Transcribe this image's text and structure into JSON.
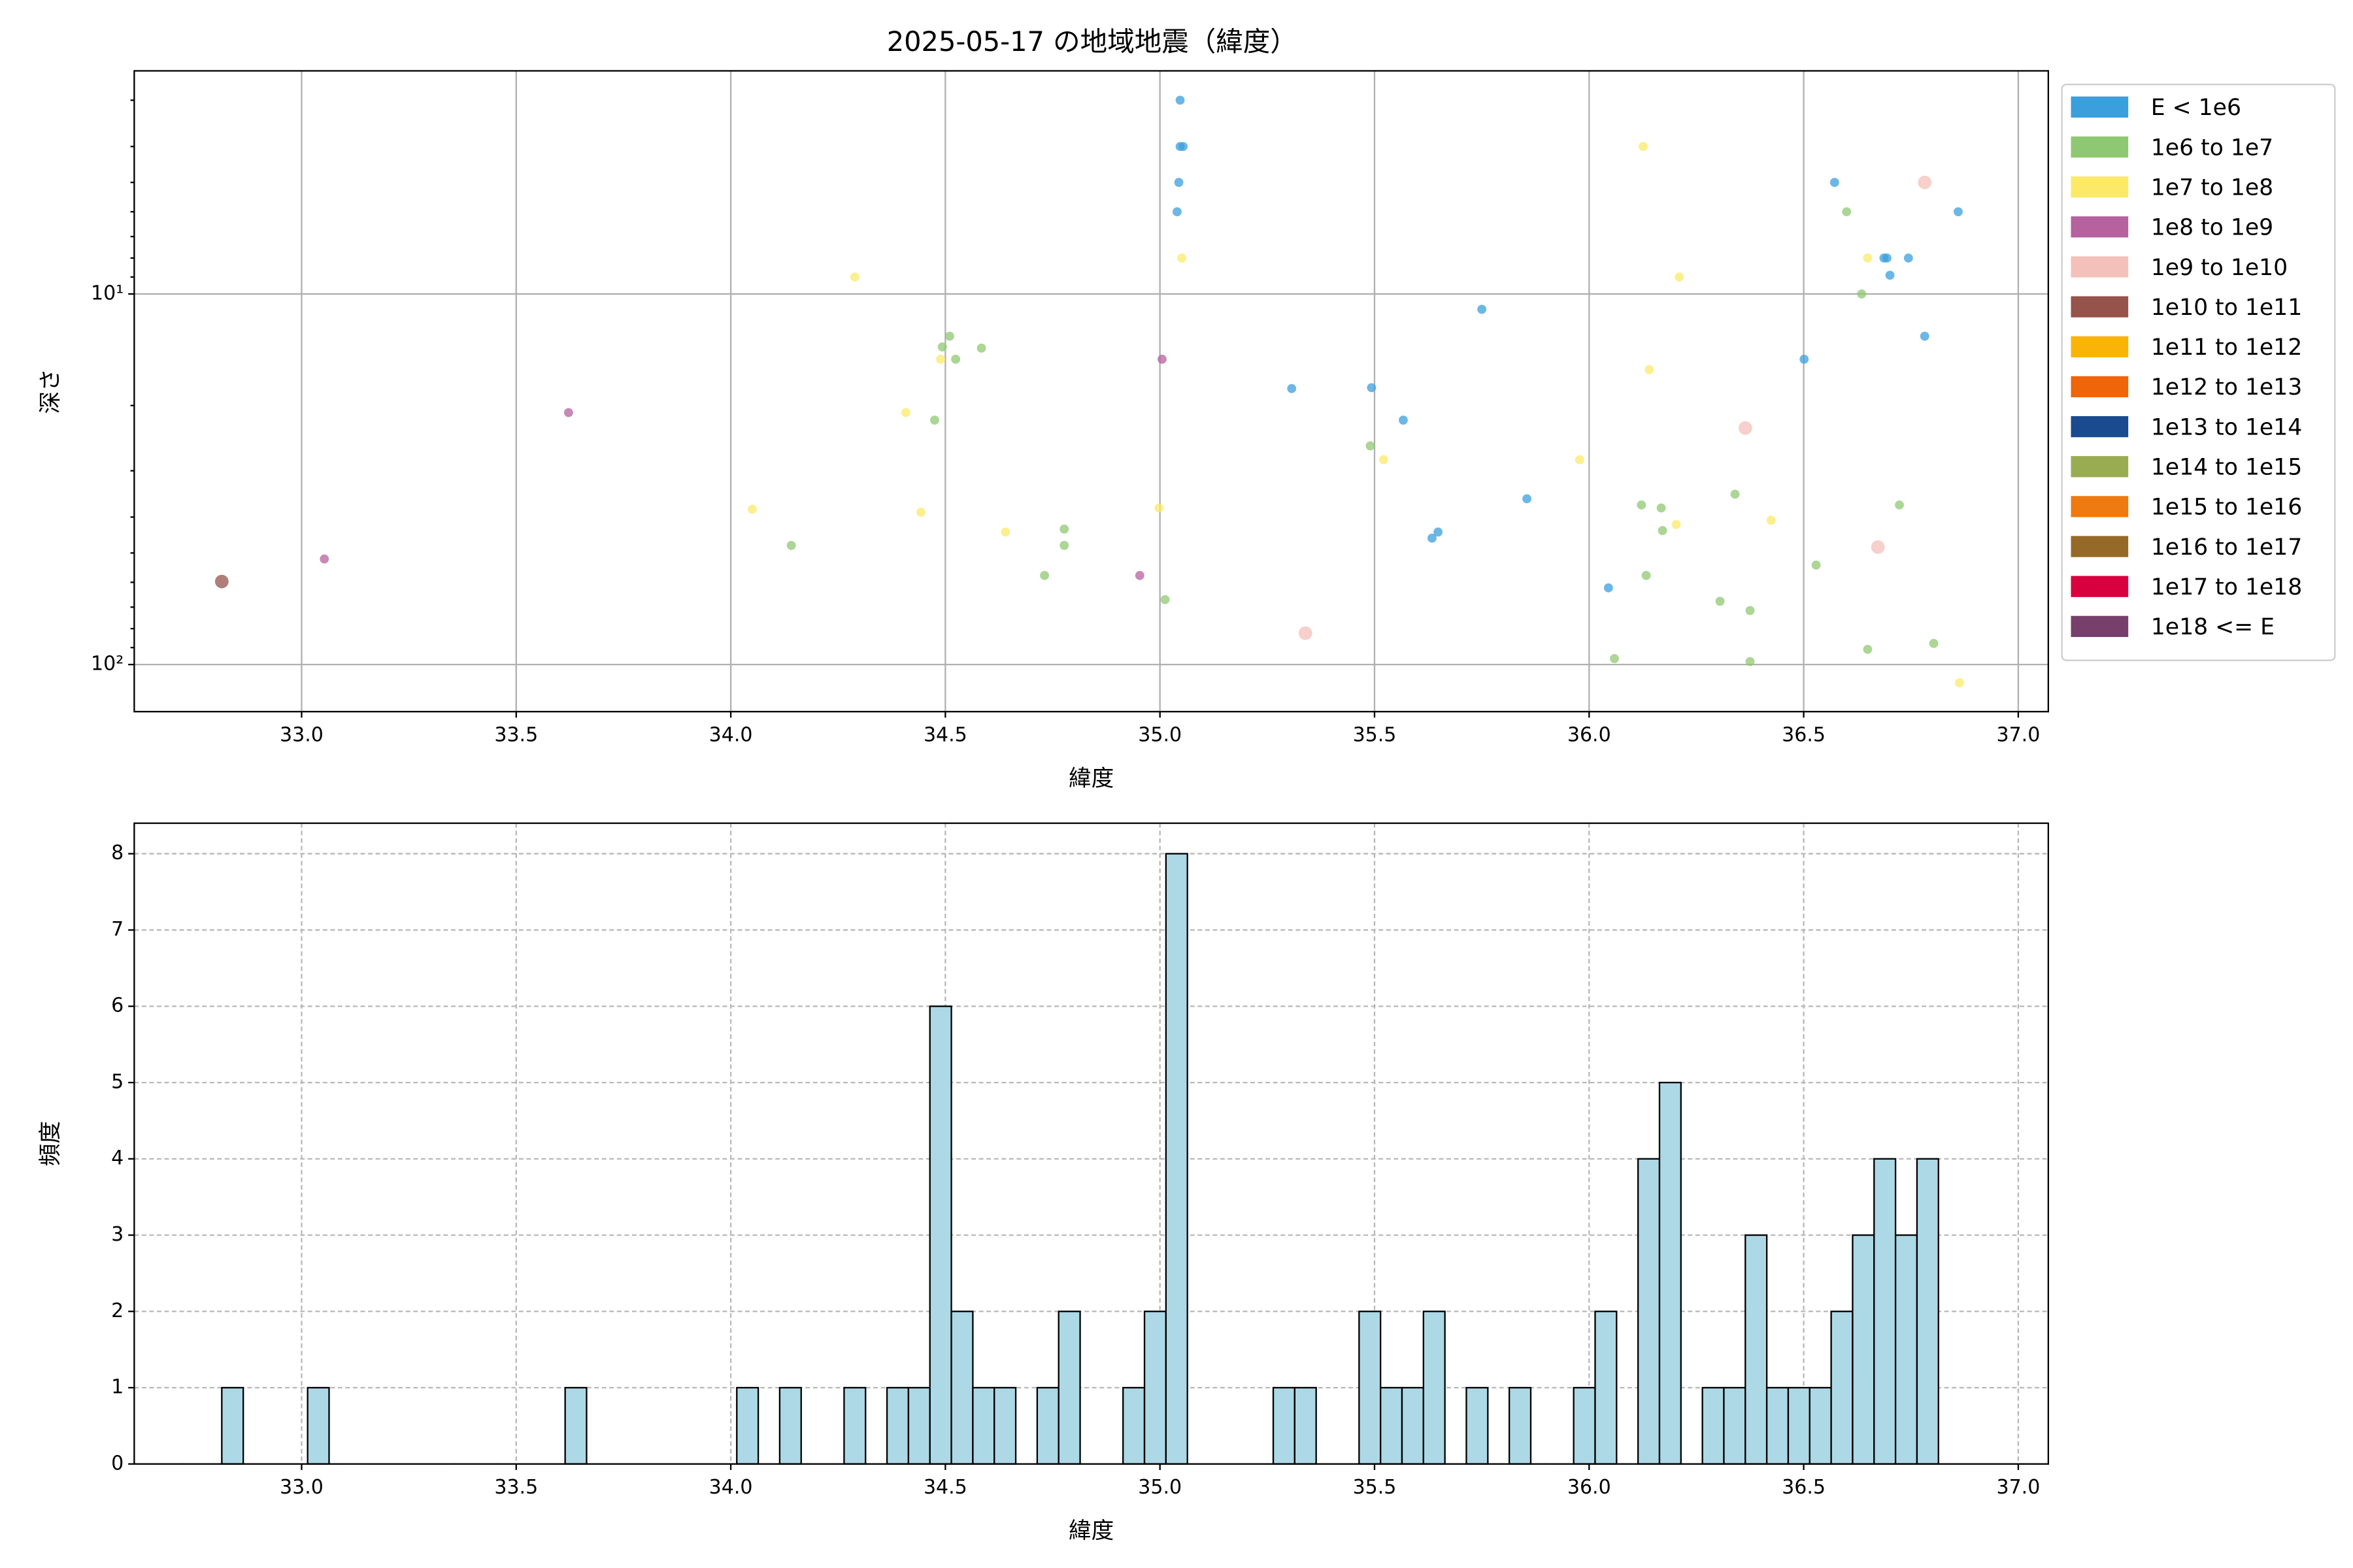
{
  "chart_data": [
    {
      "type": "scatter",
      "title": "2025-05-17 の地域地震（緯度）",
      "xlabel": "緯度",
      "ylabel": "深さ",
      "xlim": [
        32.61,
        37.07
      ],
      "ylim": [
        134,
        2.5
      ],
      "yscale": "log",
      "grid": true,
      "xticks": [
        {
          "value": 33,
          "label": "33.0"
        },
        {
          "value": 33.5,
          "label": "33.5"
        },
        {
          "value": 34,
          "label": "34.0"
        },
        {
          "value": 34.5,
          "label": "34.5"
        },
        {
          "value": 35,
          "label": "35.0"
        },
        {
          "value": 35.5,
          "label": "35.5"
        },
        {
          "value": 36,
          "label": "36.0"
        },
        {
          "value": 36.5,
          "label": "36.5"
        },
        {
          "value": 37,
          "label": "37.0"
        }
      ],
      "yticks": [
        {
          "value": 10,
          "label": "10¹"
        },
        {
          "value": 100,
          "label": "10²"
        }
      ],
      "yminorticks": [
        3,
        4,
        5,
        6,
        7,
        8,
        9,
        20,
        30,
        40,
        50,
        60,
        70,
        80,
        90
      ],
      "series": [
        {
          "name": "E < 1e6",
          "color": "#3a9fdc",
          "x": [
            35.047,
            35.047,
            35.054,
            35.044,
            35.04,
            35.307,
            35.493,
            35.567,
            35.75,
            35.855,
            35.634,
            35.648,
            36.045,
            36.501,
            36.572,
            36.687,
            36.694,
            36.744,
            36.701,
            36.782,
            36.86
          ],
          "values": [
            3.0,
            4.0,
            4.0,
            5.0,
            6.0,
            18.0,
            17.9,
            21.9,
            11.0,
            35.7,
            45.6,
            43.9,
            62.1,
            15.0,
            5.0,
            8.0,
            8.0,
            8.0,
            8.9,
            13.0,
            6.0
          ]
        },
        {
          "name": "1e6 to 1e7",
          "color": "#8fc872",
          "x": [
            34.141,
            34.493,
            34.51,
            34.524,
            34.584,
            34.475,
            34.731,
            34.777,
            34.777,
            35.012,
            35.49,
            36.122,
            36.168,
            36.133,
            36.171,
            36.305,
            36.34,
            36.375,
            36.375,
            36.059,
            36.529,
            36.6,
            36.635,
            36.649,
            36.723,
            36.803
          ],
          "values": [
            47.7,
            13.9,
            13.0,
            15.0,
            14.0,
            21.9,
            57.5,
            43.1,
            47.7,
            66.8,
            25.7,
            37.1,
            37.8,
            57.5,
            43.5,
            67.5,
            34.7,
            71.5,
            98.2,
            96.4,
            53.9,
            6.0,
            10.0,
            91.0,
            37.1,
            87.7
          ]
        },
        {
          "name": "1e7 to 1e8",
          "color": "#fbe967",
          "x": [
            34.289,
            34.408,
            34.489,
            34.05,
            34.443,
            34.64,
            34.998,
            35.051,
            35.521,
            35.978,
            36.126,
            36.14,
            36.21,
            36.203,
            36.424,
            36.649,
            36.863
          ],
          "values": [
            9.0,
            20.9,
            15.0,
            38.1,
            38.8,
            43.9,
            37.8,
            8.0,
            28.0,
            28.0,
            4.0,
            16.0,
            9.0,
            41.9,
            40.8,
            8.0,
            112
          ]
        },
        {
          "name": "1e8 to 1e9",
          "color": "#b5629f",
          "x": [
            33.622,
            33.053,
            34.953,
            35.005
          ],
          "values": [
            20.9,
            51.9,
            57.5,
            15.0
          ]
        },
        {
          "name": "1e9 to 1e10",
          "color": "#f4c0ba",
          "x": [
            36.782,
            36.364,
            35.339,
            36.673
          ],
          "values": [
            5.0,
            23.0,
            82.3,
            48.2
          ]
        },
        {
          "name": "1e10 to 1e11",
          "color": "#96534b",
          "x": [
            32.814
          ],
          "values": [
            59.7
          ]
        },
        {
          "name": "1e11 to 1e12",
          "color": "#f9b407",
          "x": [],
          "values": []
        },
        {
          "name": "1e12 to 1e13",
          "color": "#ee650a",
          "x": [],
          "values": []
        },
        {
          "name": "1e13 to 1e14",
          "color": "#1a4a90",
          "x": [],
          "values": []
        },
        {
          "name": "1e14 to 1e15",
          "color": "#9aac52",
          "x": [],
          "values": []
        },
        {
          "name": "1e15 to 1e16",
          "color": "#ee7a10",
          "x": [],
          "values": []
        },
        {
          "name": "1e16 to 1e17",
          "color": "#956a28",
          "x": [],
          "values": []
        },
        {
          "name": "1e17 to 1e18",
          "color": "#d9003f",
          "x": [],
          "values": []
        },
        {
          "name": "1e18 <= E",
          "color": "#773f6c",
          "x": [],
          "values": []
        }
      ]
    },
    {
      "type": "histogram",
      "xlabel": "緯度",
      "ylabel": "頻度",
      "color": "#add8e6",
      "edgecolor": "#000000",
      "xlim": [
        32.61,
        37.07
      ],
      "ylim": [
        0,
        8.4
      ],
      "grid": true,
      "grid_style": "dashed",
      "xticks": [
        {
          "value": 33,
          "label": "33.0"
        },
        {
          "value": 33.5,
          "label": "33.5"
        },
        {
          "value": 34,
          "label": "34.0"
        },
        {
          "value": 34.5,
          "label": "34.5"
        },
        {
          "value": 35,
          "label": "35.0"
        },
        {
          "value": 35.5,
          "label": "35.5"
        },
        {
          "value": 36,
          "label": "36.0"
        },
        {
          "value": 36.5,
          "label": "36.5"
        },
        {
          "value": 37,
          "label": "37.0"
        }
      ],
      "yticks": [
        0,
        1,
        2,
        3,
        4,
        5,
        6,
        7,
        8
      ],
      "bins": [
        32.814,
        32.864,
        32.914,
        32.964,
        33.014,
        33.064,
        33.114,
        33.164,
        33.214,
        33.264,
        33.314,
        33.364,
        33.414,
        33.464,
        33.514,
        33.564,
        33.614,
        33.664,
        33.714,
        33.764,
        33.814,
        33.864,
        33.914,
        33.964,
        34.014,
        34.064,
        34.114,
        34.164,
        34.214,
        34.264,
        34.314,
        34.364,
        34.414,
        34.464,
        34.514,
        34.564,
        34.614,
        34.664,
        34.714,
        34.764,
        34.814,
        34.864,
        34.914,
        34.964,
        35.014,
        35.064,
        35.114,
        35.164,
        35.214,
        35.264,
        35.314,
        35.364,
        35.414,
        35.464,
        35.514,
        35.564,
        35.614,
        35.664,
        35.714,
        35.764,
        35.814,
        35.864,
        35.914,
        35.964,
        36.014,
        36.064,
        36.114,
        36.164,
        36.214,
        36.264,
        36.314,
        36.364,
        36.414,
        36.464,
        36.514,
        36.564,
        36.614,
        36.664,
        36.714,
        36.764,
        36.814
      ],
      "values": [
        1,
        0,
        0,
        0,
        1,
        0,
        0,
        0,
        0,
        0,
        0,
        0,
        0,
        0,
        0,
        0,
        1,
        0,
        0,
        0,
        0,
        0,
        0,
        0,
        1,
        0,
        1,
        0,
        0,
        1,
        0,
        1,
        1,
        6,
        2,
        1,
        1,
        0,
        1,
        2,
        0,
        0,
        1,
        2,
        8,
        0,
        0,
        0,
        0,
        1,
        1,
        0,
        0,
        2,
        1,
        1,
        2,
        0,
        1,
        0,
        1,
        0,
        0,
        1,
        2,
        0,
        4,
        5,
        0,
        1,
        1,
        3,
        1,
        1,
        1,
        2,
        3,
        4,
        3,
        4
      ]
    }
  ]
}
